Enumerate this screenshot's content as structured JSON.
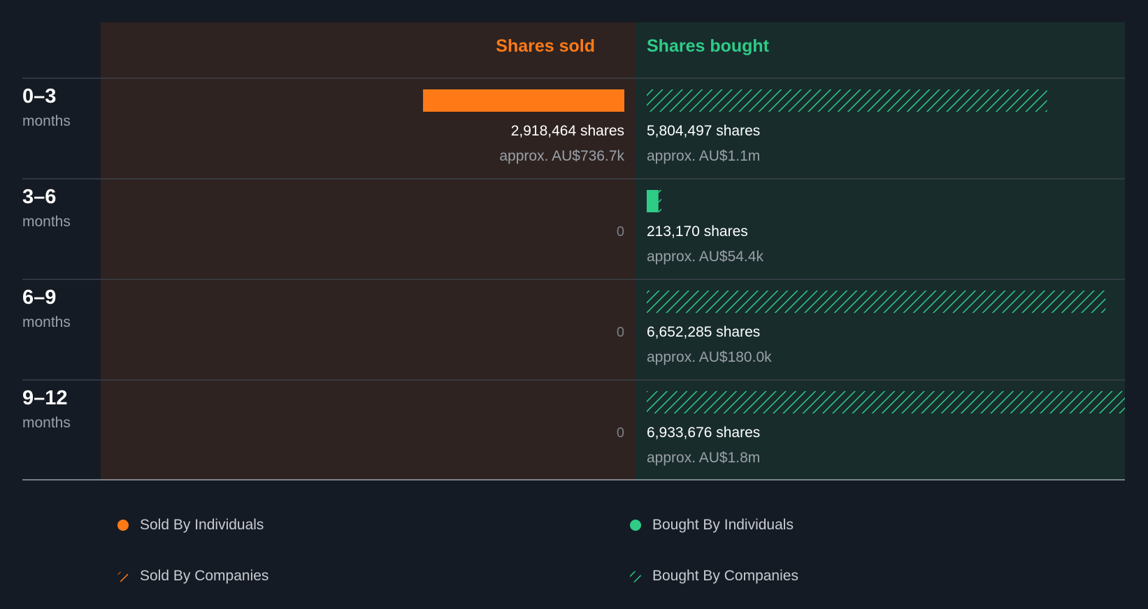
{
  "colors": {
    "background": "#151b24",
    "sold_panel": "#2e2321",
    "bought_panel": "#182c2c",
    "sold": "#ff7a17",
    "bought": "#2ecc87",
    "divider": "#3a4048",
    "axis": "#9aa0a8"
  },
  "headers": {
    "sold": "Shares sold",
    "bought": "Shares bought"
  },
  "chart_data": {
    "type": "bar",
    "orientation": "horizontal",
    "layout": "diverging",
    "categories": [
      "0–3 months",
      "3–6 months",
      "6–9 months",
      "9–12 months"
    ],
    "max_bought_shares": 6933676,
    "series": [
      {
        "name": "Sold By Individuals",
        "side": "sold",
        "values": [
          2918464,
          0,
          0,
          0
        ]
      },
      {
        "name": "Sold By Companies",
        "side": "sold",
        "values": [
          0,
          0,
          0,
          0
        ]
      },
      {
        "name": "Bought By Individuals",
        "side": "bought",
        "values": [
          0,
          170000,
          0,
          0
        ]
      },
      {
        "name": "Bought By Companies",
        "side": "bought",
        "values": [
          5804497,
          43170,
          6652285,
          6933676
        ]
      }
    ],
    "legend_position": "bottom"
  },
  "periods": [
    {
      "range": "0–3",
      "unit": "months",
      "sold_shares": 2918464,
      "sold_label": "2,918,464 shares",
      "sold_approx": "approx. AU$736.7k",
      "sold_zero": "",
      "bought_label": "5,804,497 shares",
      "bought_approx": "approx. AU$1.1m"
    },
    {
      "range": "3–6",
      "unit": "months",
      "sold_shares": 0,
      "sold_label": "",
      "sold_approx": "",
      "sold_zero": "0",
      "bought_label": "213,170 shares",
      "bought_approx": "approx. AU$54.4k"
    },
    {
      "range": "6–9",
      "unit": "months",
      "sold_shares": 0,
      "sold_label": "",
      "sold_approx": "",
      "sold_zero": "0",
      "bought_label": "6,652,285 shares",
      "bought_approx": "approx. AU$180.0k"
    },
    {
      "range": "9–12",
      "unit": "months",
      "sold_shares": 0,
      "sold_label": "",
      "sold_approx": "",
      "sold_zero": "0",
      "bought_label": "6,933,676 shares",
      "bought_approx": "approx. AU$1.8m"
    }
  ],
  "legend": {
    "sold_individuals": "Sold By Individuals",
    "sold_companies": "Sold By Companies",
    "bought_individuals": "Bought By Individuals",
    "bought_companies": "Bought By Companies"
  }
}
